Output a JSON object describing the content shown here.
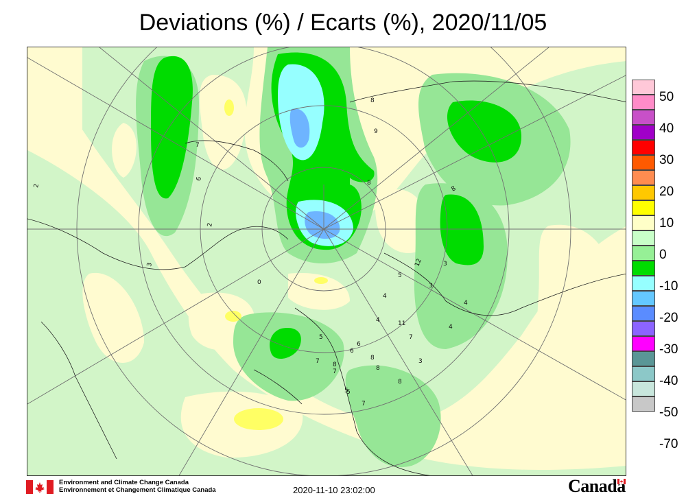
{
  "title": "Deviations (%) / Ecarts (%), 2020/11/05",
  "legend": {
    "levels": [
      {
        "label": "50",
        "color": "#ffc8d8"
      },
      {
        "label": "40",
        "color": "#ff8cc8",
        "color_below": "#c850c8"
      },
      {
        "label": "30",
        "color": "#a000c8",
        "color_below": "#ff0000"
      },
      {
        "label": "20",
        "color": "#ff5a00",
        "color_below": "#ff8c50"
      },
      {
        "label": "10",
        "color": "#ffc800",
        "color_below": "#ffff00"
      },
      {
        "label": "0",
        "color": "#ffffc8",
        "color_below": "#c8ffc8"
      },
      {
        "label": "-10",
        "color": "#96f096",
        "color_below": "#00dc00"
      },
      {
        "label": "-20",
        "color": "#96ffff",
        "color_below": "#64c8ff"
      },
      {
        "label": "-30",
        "color": "#5a8cff",
        "color_below": "#8c64ff"
      },
      {
        "label": "-40",
        "color": "#ff00ff",
        "color_below": "#5a9696"
      },
      {
        "label": "-50",
        "color": "#8cc8c8",
        "color_below": "#c8e6dc"
      },
      {
        "label": "-70",
        "color": "#c8c8c8"
      }
    ]
  },
  "footer": {
    "org_en": "Environment and Climate Change Canada",
    "org_fr": "Environnement et Changement Climatique Canada",
    "timestamp": "2020-11-10 23:02:00",
    "wordmark": "Canada"
  },
  "stations": [
    "2",
    "6",
    "7",
    "8",
    "9",
    "8",
    "2",
    "8",
    "3",
    "0",
    "5",
    "4",
    "12",
    "3",
    "3",
    "5",
    "6",
    "4",
    "4",
    "4",
    "5",
    "8",
    "6",
    "7",
    "11",
    "7",
    "8",
    "3",
    "8",
    "5",
    "7",
    "7",
    "8"
  ],
  "colors": {
    "background_yellow": "#fffbd0",
    "light_green": "#c8f5c8",
    "mid_green": "#96e696",
    "bright_green": "#00dc00",
    "cyan": "#96ffff",
    "light_blue": "#64b4ff",
    "yellow": "#ffff64",
    "flag_red": "#e01b22"
  }
}
